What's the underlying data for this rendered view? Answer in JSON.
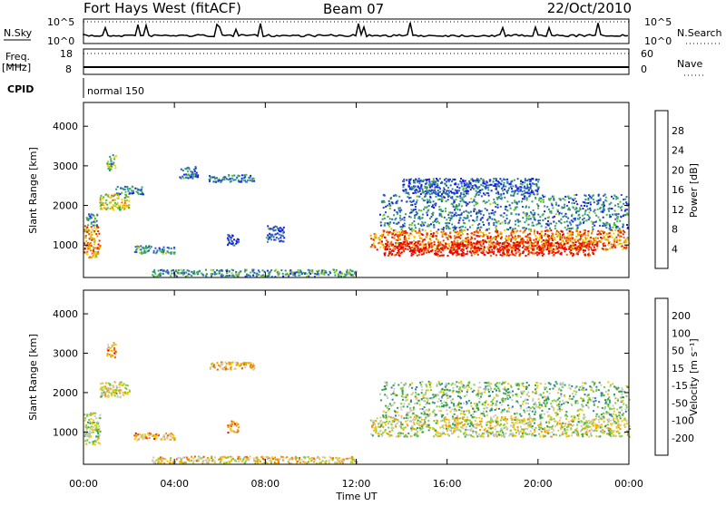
{
  "header": {
    "station": "Fort Hays West (fitACF)",
    "beam": "Beam 07",
    "date": "22/Oct/2010"
  },
  "noise_panel": {
    "left_label": "N.Sky",
    "left_ticks": [
      "10^5",
      "10^0"
    ],
    "right_label": "N.Search",
    "right_ticks": [
      "10^5",
      "10^0"
    ]
  },
  "freq_panel": {
    "left_label_line1": "Freq.",
    "left_label_line2": "[MHz]",
    "left_ticks": [
      "18",
      "8"
    ],
    "right_label": "Nave",
    "right_ticks": [
      "60",
      "0"
    ]
  },
  "cpid_panel": {
    "label": "CPID",
    "text": "normal 150"
  },
  "chart_data": [
    {
      "type": "heatmap",
      "name": "power",
      "ylabel": "Slant Range [km]",
      "yticks": [
        "1000",
        "2000",
        "3000",
        "4000"
      ],
      "ylim": [
        180,
        4600
      ],
      "xlim": [
        0,
        24
      ],
      "colorbar": {
        "label": "Power [dB]",
        "ticks": [
          "4",
          "8",
          "12",
          "16",
          "20",
          "24",
          "28"
        ],
        "colors": [
          "#1a1ae6",
          "#2a55c8",
          "#2e7cb0",
          "#2f9b70",
          "#4dbb3a",
          "#a8d020",
          "#f2d000",
          "#f5a000",
          "#f06a00",
          "#e62e00",
          "#ee0000"
        ]
      },
      "regions": [
        {
          "t0": 0.0,
          "t1": 0.7,
          "r0": 700,
          "r1": 1500,
          "v": 0.7
        },
        {
          "t0": 0.1,
          "t1": 0.6,
          "r0": 1500,
          "r1": 1800,
          "v": 0.3
        },
        {
          "t0": 0.7,
          "t1": 2.0,
          "r0": 1900,
          "r1": 2300,
          "v": 0.55
        },
        {
          "t0": 1.0,
          "t1": 1.4,
          "r0": 2900,
          "r1": 3300,
          "v": 0.4
        },
        {
          "t0": 1.4,
          "t1": 2.6,
          "r0": 2300,
          "r1": 2500,
          "v": 0.25
        },
        {
          "t0": 2.2,
          "t1": 4.0,
          "r0": 800,
          "r1": 1000,
          "v": 0.3
        },
        {
          "t0": 4.2,
          "t1": 5.0,
          "r0": 2700,
          "r1": 3000,
          "v": 0.2
        },
        {
          "t0": 5.5,
          "t1": 7.5,
          "r0": 2600,
          "r1": 2800,
          "v": 0.2
        },
        {
          "t0": 6.3,
          "t1": 6.8,
          "r0": 1000,
          "r1": 1300,
          "v": 0.15
        },
        {
          "t0": 8.0,
          "t1": 8.8,
          "r0": 1100,
          "r1": 1500,
          "v": 0.15
        },
        {
          "t0": 3.0,
          "t1": 12.0,
          "r0": 220,
          "r1": 400,
          "v": 0.3
        },
        {
          "t0": 12.6,
          "t1": 24.0,
          "r0": 900,
          "r1": 1400,
          "v": 0.75
        },
        {
          "t0": 13.2,
          "t1": 22.5,
          "r0": 750,
          "r1": 1100,
          "v": 0.95
        },
        {
          "t0": 13.0,
          "t1": 24.0,
          "r0": 1400,
          "r1": 2300,
          "v": 0.25
        },
        {
          "t0": 14.0,
          "t1": 20.0,
          "r0": 2300,
          "r1": 2700,
          "v": 0.15
        }
      ]
    },
    {
      "type": "heatmap",
      "name": "velocity",
      "ylabel": "Slant Range [km]",
      "yticks": [
        "1000",
        "2000",
        "3000",
        "4000"
      ],
      "ylim": [
        180,
        4600
      ],
      "xlim": [
        0,
        24
      ],
      "xticks": [
        "00:00",
        "04:00",
        "08:00",
        "12:00",
        "16:00",
        "20:00",
        "00:00"
      ],
      "xlabel": "Time UT",
      "colorbar": {
        "label": "Velocity [m s⁻¹]",
        "ticks": [
          "-200",
          "-100",
          "-50",
          "-15",
          "15",
          "50",
          "100",
          "200"
        ],
        "colors": [
          "#ee0000",
          "#f05a00",
          "#f59400",
          "#f2c800",
          "#c8c8c8",
          "#80cc40",
          "#2fa050",
          "#2e7cb0",
          "#1a3ac8"
        ]
      },
      "regions": [
        {
          "t0": 0.0,
          "t1": 0.7,
          "r0": 700,
          "r1": 1500,
          "v": 0.55
        },
        {
          "t0": 0.7,
          "t1": 2.0,
          "r0": 1900,
          "r1": 2300,
          "v": 0.5
        },
        {
          "t0": 1.0,
          "t1": 1.4,
          "r0": 2900,
          "r1": 3300,
          "v": 0.3
        },
        {
          "t0": 2.2,
          "t1": 4.0,
          "r0": 800,
          "r1": 1000,
          "v": 0.3
        },
        {
          "t0": 5.5,
          "t1": 7.5,
          "r0": 2600,
          "r1": 2800,
          "v": 0.35
        },
        {
          "t0": 6.3,
          "t1": 6.8,
          "r0": 1000,
          "r1": 1300,
          "v": 0.3
        },
        {
          "t0": 3.0,
          "t1": 12.0,
          "r0": 220,
          "r1": 400,
          "v": 0.4
        },
        {
          "t0": 12.6,
          "t1": 24.0,
          "r0": 900,
          "r1": 1400,
          "v": 0.5
        },
        {
          "t0": 13.0,
          "t1": 24.0,
          "r0": 1400,
          "r1": 2300,
          "v": 0.6
        }
      ]
    }
  ]
}
